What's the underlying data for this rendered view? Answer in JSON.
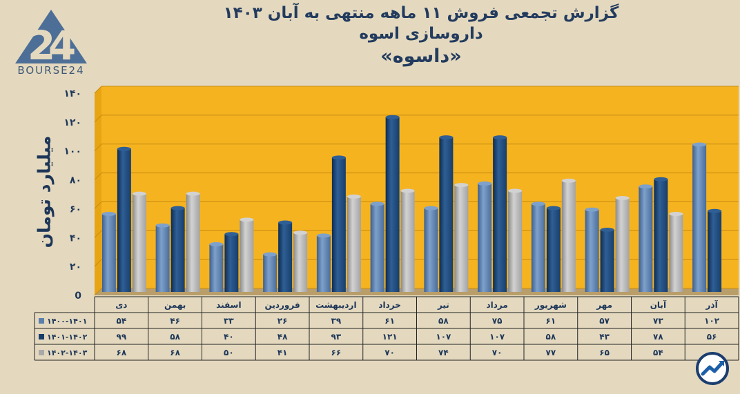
{
  "title": {
    "line1": "گزارش تجمعی فروش ۱۱ ماهه منتهی به آبان ۱۴۰۳",
    "line2": "داروسازی اسوه",
    "line3": "«داسوه»"
  },
  "brand": {
    "name": "BOURSE24",
    "logo_icon": "bourse24-logo-icon",
    "badge_icon": "trend-arrow-icon"
  },
  "colors": {
    "plot_bg": "#f5b320",
    "wall": "#e7a514",
    "floor": "#b99e6a",
    "series": [
      "#5a7fae",
      "#173e6b",
      "#a9a9a9"
    ]
  },
  "chart_data": {
    "type": "bar",
    "ylabel": "میلیارد تومان",
    "ylim": [
      0,
      140
    ],
    "ytick_values": [
      0,
      20,
      40,
      60,
      80,
      100,
      120,
      140
    ],
    "ytick_labels": [
      "0",
      "۲۰",
      "۴۰",
      "۶۰",
      "۸۰",
      "۱۰۰",
      "۱۲۰",
      "۱۴۰"
    ],
    "grid": true,
    "legend": "table-left",
    "categories": [
      "دی",
      "بهمن",
      "اسفند",
      "فروردین",
      "اردیبهشت",
      "خرداد",
      "تیر",
      "مرداد",
      "شهریور",
      "مهر",
      "آبان",
      "آذر"
    ],
    "series": [
      {
        "name": "۱۴۰۰-۱۴۰۱",
        "values": [
          54,
          46,
          33,
          26,
          39,
          61,
          58,
          75,
          61,
          57,
          73,
          102
        ],
        "labels": [
          "۵۴",
          "۴۶",
          "۳۳",
          "۲۶",
          "۳۹",
          "۶۱",
          "۵۸",
          "۷۵",
          "۶۱",
          "۵۷",
          "۷۳",
          "۱۰۲"
        ]
      },
      {
        "name": "۱۴۰۱-۱۴۰۲",
        "values": [
          99,
          58,
          40,
          48,
          93,
          121,
          107,
          107,
          58,
          43,
          78,
          56
        ],
        "labels": [
          "۹۹",
          "۵۸",
          "۴۰",
          "۴۸",
          "۹۳",
          "۱۲۱",
          "۱۰۷",
          "۱۰۷",
          "۵۸",
          "۴۳",
          "۷۸",
          "۵۶"
        ]
      },
      {
        "name": "۱۴۰۲-۱۴۰۳",
        "values": [
          68,
          68,
          50,
          41,
          66,
          70,
          74,
          70,
          77,
          65,
          54,
          null
        ],
        "labels": [
          "۶۸",
          "۶۸",
          "۵۰",
          "۴۱",
          "۶۶",
          "۷۰",
          "۷۴",
          "۷۰",
          "۷۷",
          "۶۵",
          "۵۴",
          ""
        ]
      }
    ]
  }
}
